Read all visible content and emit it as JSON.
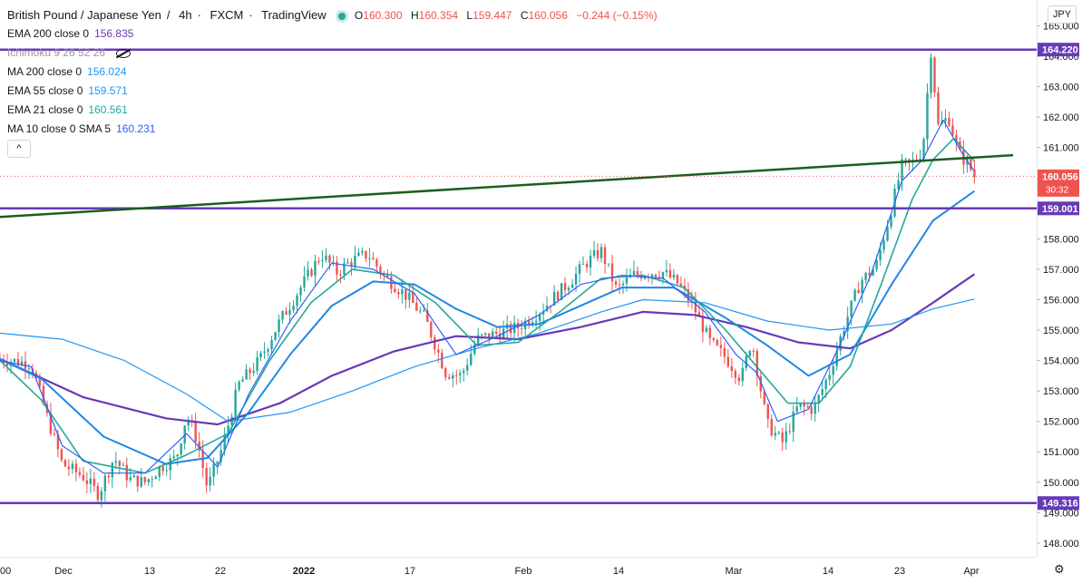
{
  "header": {
    "symbol": "British Pound / Japanese Yen",
    "interval": "4h",
    "source": "FXCM",
    "platform": "TradingView",
    "ohlc": {
      "open_label": "O",
      "open": "160.300",
      "high_label": "H",
      "high": "160.354",
      "low_label": "L",
      "low": "159.447",
      "close_label": "C",
      "close": "160.056",
      "change": "−0.244 (−0.15%)"
    }
  },
  "indicators": [
    {
      "label": "EMA 200 close 0",
      "value": "156.835",
      "color": "#673ab7"
    },
    {
      "label": "Ichimoku 9 26 52 26",
      "value": "",
      "color": "#9598a1"
    },
    {
      "label": "MA 200 close 0",
      "value": "156.024",
      "color": "#2196f3"
    },
    {
      "label": "EMA 55 close 0",
      "value": "159.571",
      "color": "#2196f3"
    },
    {
      "label": "EMA 21 close 0",
      "value": "160.561",
      "color": "#26a69a"
    },
    {
      "label": "MA 10 close 0 SMA 5",
      "value": "160.231",
      "color": "#2962ff"
    }
  ],
  "collapse_button": "^",
  "currency": "JPY",
  "settings_icon": "gear-icon",
  "colors": {
    "up": "#26a69a",
    "down": "#ef5350",
    "hline": "#673ab7",
    "trendline": "#1b5e20",
    "ema200": "#673ab7",
    "ma200": "#2196f3",
    "ema55": "#1e88e5",
    "ema21": "#26a69a",
    "ma10": "#2962ff"
  },
  "chart_data": {
    "type": "candlestick",
    "ylim": [
      147.55,
      165.85
    ],
    "y_ticks": [
      "165.000",
      "164.000",
      "163.000",
      "162.000",
      "161.000",
      "160.000",
      "159.000",
      "158.000",
      "157.000",
      "156.000",
      "155.000",
      "154.000",
      "153.000",
      "152.000",
      "151.000",
      "150.000",
      "149.000",
      "148.000"
    ],
    "x_ticks": [
      "00",
      "Dec",
      "13",
      "22",
      "2022",
      "17",
      "Feb",
      "14",
      "Mar",
      "14",
      "23",
      "Apr"
    ],
    "x_ticks_bold": [
      "2022"
    ],
    "price_labels": [
      {
        "value": 164.22,
        "text": "164.220",
        "kind": "hline"
      },
      {
        "value": 160.056,
        "text": "160.056",
        "sub": "30:32",
        "kind": "last"
      },
      {
        "value": 159.001,
        "text": "159.001",
        "kind": "hline"
      },
      {
        "value": 149.316,
        "text": "149.316",
        "kind": "hline"
      }
    ],
    "horizontal_lines": [
      164.22,
      159.001,
      149.316
    ],
    "trendline": {
      "start": 158.72,
      "end": 160.75
    },
    "last_price": 160.056,
    "price_path": [
      [
        0,
        154.05
      ],
      [
        0.03,
        153.9
      ],
      [
        0.045,
        152.2
      ],
      [
        0.06,
        150.6
      ],
      [
        0.08,
        150.2
      ],
      [
        0.095,
        149.6
      ],
      [
        0.11,
        150.8
      ],
      [
        0.125,
        150.1
      ],
      [
        0.14,
        150.0
      ],
      [
        0.155,
        150.5
      ],
      [
        0.17,
        150.8
      ],
      [
        0.18,
        152.2
      ],
      [
        0.19,
        151.4
      ],
      [
        0.2,
        149.8
      ],
      [
        0.215,
        151.2
      ],
      [
        0.23,
        153.2
      ],
      [
        0.25,
        154.0
      ],
      [
        0.27,
        155.3
      ],
      [
        0.29,
        156.4
      ],
      [
        0.31,
        157.5
      ],
      [
        0.325,
        156.9
      ],
      [
        0.34,
        157.3
      ],
      [
        0.355,
        157.5
      ],
      [
        0.37,
        156.8
      ],
      [
        0.39,
        156.2
      ],
      [
        0.41,
        155.4
      ],
      [
        0.43,
        153.6
      ],
      [
        0.445,
        153.5
      ],
      [
        0.46,
        154.7
      ],
      [
        0.48,
        154.9
      ],
      [
        0.5,
        155.1
      ],
      [
        0.52,
        155.6
      ],
      [
        0.535,
        156.1
      ],
      [
        0.55,
        156.6
      ],
      [
        0.565,
        157.2
      ],
      [
        0.58,
        157.6
      ],
      [
        0.595,
        156.3
      ],
      [
        0.61,
        156.8
      ],
      [
        0.625,
        156.9
      ],
      [
        0.64,
        156.9
      ],
      [
        0.655,
        156.5
      ],
      [
        0.67,
        155.7
      ],
      [
        0.685,
        154.6
      ],
      [
        0.7,
        154.1
      ],
      [
        0.715,
        153.4
      ],
      [
        0.725,
        154.7
      ],
      [
        0.74,
        151.9
      ],
      [
        0.755,
        151.3
      ],
      [
        0.77,
        152.5
      ],
      [
        0.785,
        152.4
      ],
      [
        0.8,
        153.6
      ],
      [
        0.815,
        155.2
      ],
      [
        0.83,
        156.6
      ],
      [
        0.845,
        157.1
      ],
      [
        0.86,
        159.0
      ],
      [
        0.87,
        160.4
      ],
      [
        0.88,
        160.5
      ],
      [
        0.89,
        160.9
      ],
      [
        0.898,
        164.2
      ],
      [
        0.905,
        161.7
      ],
      [
        0.915,
        162.0
      ],
      [
        0.925,
        160.8
      ],
      [
        0.935,
        160.4
      ],
      [
        0.94,
        160.06
      ]
    ],
    "series": [
      {
        "key": "ema200",
        "points": [
          [
            0,
            154.05
          ],
          [
            0.08,
            152.8
          ],
          [
            0.16,
            152.1
          ],
          [
            0.21,
            151.9
          ],
          [
            0.27,
            152.6
          ],
          [
            0.32,
            153.5
          ],
          [
            0.38,
            154.3
          ],
          [
            0.44,
            154.8
          ],
          [
            0.5,
            154.7
          ],
          [
            0.56,
            155.1
          ],
          [
            0.62,
            155.6
          ],
          [
            0.67,
            155.5
          ],
          [
            0.72,
            155.1
          ],
          [
            0.77,
            154.6
          ],
          [
            0.82,
            154.4
          ],
          [
            0.86,
            155.0
          ],
          [
            0.9,
            155.9
          ],
          [
            0.94,
            156.84
          ]
        ]
      },
      {
        "key": "ma200",
        "points": [
          [
            0,
            154.9
          ],
          [
            0.06,
            154.7
          ],
          [
            0.12,
            154.0
          ],
          [
            0.18,
            152.9
          ],
          [
            0.22,
            152.0
          ],
          [
            0.28,
            152.3
          ],
          [
            0.34,
            153.0
          ],
          [
            0.4,
            153.8
          ],
          [
            0.46,
            154.4
          ],
          [
            0.52,
            154.9
          ],
          [
            0.58,
            155.6
          ],
          [
            0.62,
            156.0
          ],
          [
            0.68,
            155.9
          ],
          [
            0.74,
            155.3
          ],
          [
            0.8,
            155.0
          ],
          [
            0.86,
            155.2
          ],
          [
            0.9,
            155.7
          ],
          [
            0.94,
            156.02
          ]
        ]
      },
      {
        "key": "ema55",
        "points": [
          [
            0,
            154.05
          ],
          [
            0.04,
            153.4
          ],
          [
            0.1,
            151.5
          ],
          [
            0.16,
            150.6
          ],
          [
            0.2,
            150.8
          ],
          [
            0.24,
            152.3
          ],
          [
            0.28,
            154.2
          ],
          [
            0.32,
            155.8
          ],
          [
            0.36,
            156.6
          ],
          [
            0.4,
            156.5
          ],
          [
            0.44,
            155.7
          ],
          [
            0.48,
            155.1
          ],
          [
            0.52,
            155.2
          ],
          [
            0.56,
            155.8
          ],
          [
            0.6,
            156.4
          ],
          [
            0.65,
            156.4
          ],
          [
            0.7,
            155.4
          ],
          [
            0.74,
            154.5
          ],
          [
            0.78,
            153.5
          ],
          [
            0.82,
            154.2
          ],
          [
            0.86,
            156.5
          ],
          [
            0.9,
            158.6
          ],
          [
            0.94,
            159.57
          ]
        ]
      },
      {
        "key": "ema21",
        "points": [
          [
            0,
            154.0
          ],
          [
            0.04,
            152.7
          ],
          [
            0.08,
            150.7
          ],
          [
            0.14,
            150.3
          ],
          [
            0.18,
            150.9
          ],
          [
            0.22,
            151.6
          ],
          [
            0.26,
            154.0
          ],
          [
            0.3,
            155.9
          ],
          [
            0.34,
            157.0
          ],
          [
            0.38,
            156.8
          ],
          [
            0.42,
            155.9
          ],
          [
            0.46,
            154.5
          ],
          [
            0.5,
            154.6
          ],
          [
            0.54,
            155.6
          ],
          [
            0.58,
            156.7
          ],
          [
            0.62,
            156.8
          ],
          [
            0.66,
            156.4
          ],
          [
            0.7,
            155.0
          ],
          [
            0.73,
            153.8
          ],
          [
            0.76,
            152.6
          ],
          [
            0.79,
            152.6
          ],
          [
            0.82,
            153.8
          ],
          [
            0.85,
            156.5
          ],
          [
            0.88,
            159.3
          ],
          [
            0.9,
            160.6
          ],
          [
            0.92,
            161.3
          ],
          [
            0.94,
            160.56
          ]
        ]
      },
      {
        "key": "ma10",
        "points": [
          [
            0,
            154.0
          ],
          [
            0.03,
            153.8
          ],
          [
            0.06,
            151.2
          ],
          [
            0.1,
            150.3
          ],
          [
            0.14,
            150.3
          ],
          [
            0.18,
            151.6
          ],
          [
            0.21,
            150.5
          ],
          [
            0.24,
            152.9
          ],
          [
            0.28,
            155.3
          ],
          [
            0.32,
            157.2
          ],
          [
            0.36,
            157.0
          ],
          [
            0.4,
            156.2
          ],
          [
            0.44,
            154.2
          ],
          [
            0.48,
            154.8
          ],
          [
            0.52,
            155.5
          ],
          [
            0.56,
            156.5
          ],
          [
            0.6,
            156.8
          ],
          [
            0.64,
            156.7
          ],
          [
            0.68,
            155.6
          ],
          [
            0.71,
            154.2
          ],
          [
            0.73,
            153.6
          ],
          [
            0.75,
            152.0
          ],
          [
            0.78,
            152.4
          ],
          [
            0.81,
            154.5
          ],
          [
            0.84,
            156.8
          ],
          [
            0.87,
            159.9
          ],
          [
            0.89,
            160.6
          ],
          [
            0.91,
            161.9
          ],
          [
            0.93,
            160.7
          ],
          [
            0.94,
            160.23
          ]
        ]
      }
    ]
  }
}
